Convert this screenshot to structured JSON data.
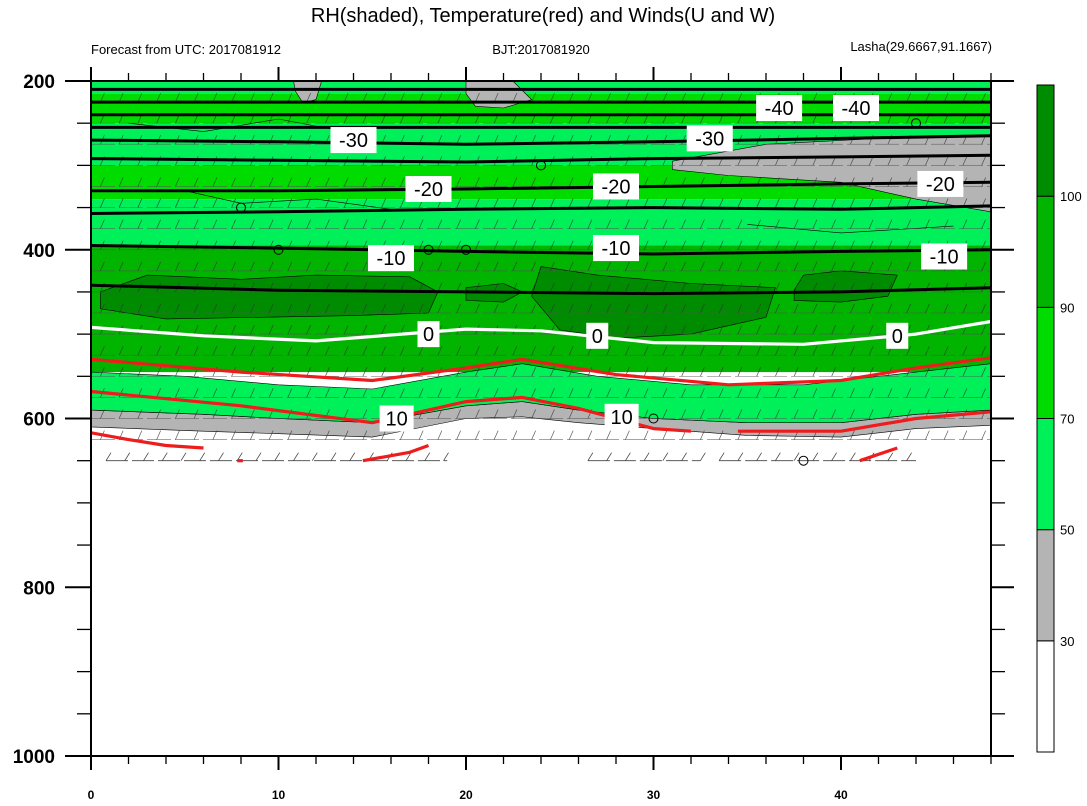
{
  "title": "RH(shaded), Temperature(red) and Winds(U and W)",
  "subtitle_left": "Forecast from UTC: 2017081912",
  "subtitle_center": "BJT:2017081920",
  "subtitle_right": "Lasha(29.6667,91.1667)",
  "colors": {
    "white": "#ffffff",
    "gray": "#b4b4b4",
    "light_green": "#00f05a",
    "green": "#00dc00",
    "mid_green": "#00b400",
    "dark_green": "#008c00",
    "temp_warm": "#ee1c1c",
    "temp_zero": "#ffffff",
    "temp_cold": "#000000"
  },
  "chart_data": {
    "type": "heatmap",
    "description_fields": "time-pressure cross section",
    "xlim": [
      0,
      48
    ],
    "ylim": [
      1000,
      200
    ],
    "x_ticks": [
      "0",
      "10",
      "20",
      "30",
      "40"
    ],
    "x_tick_values": [
      0,
      10,
      20,
      30,
      40
    ],
    "y_ticks": [
      "200",
      "400",
      "600",
      "800",
      "1000"
    ],
    "y_tick_values": [
      200,
      400,
      600,
      800,
      1000
    ],
    "colorbar": {
      "levels": [
        "30",
        "50",
        "70",
        "90",
        "100"
      ],
      "level_values": [
        30,
        50,
        70,
        90,
        100
      ],
      "bins": [
        {
          "range": [
            0,
            30
          ],
          "color": "#ffffff"
        },
        {
          "range": [
            30,
            50
          ],
          "color": "#b4b4b4"
        },
        {
          "range": [
            50,
            70
          ],
          "color": "#00f05a"
        },
        {
          "range": [
            70,
            90
          ],
          "color": "#00dc00"
        },
        {
          "range": [
            90,
            100
          ],
          "color": "#00b400"
        },
        {
          "range": [
            100,
            110
          ],
          "color": "#008c00"
        }
      ]
    },
    "rh_bands": [
      {
        "name": "surface_gray",
        "color": "#b4b4b4",
        "top": [
          [
            0,
            590
          ],
          [
            6,
            595
          ],
          [
            10,
            600
          ],
          [
            15,
            605
          ],
          [
            20,
            585
          ],
          [
            23,
            580
          ],
          [
            26,
            590
          ],
          [
            30,
            600
          ],
          [
            35,
            605
          ],
          [
            40,
            605
          ],
          [
            44,
            595
          ],
          [
            48,
            590
          ]
        ],
        "bottom": [
          [
            0,
            610
          ],
          [
            6,
            615
          ],
          [
            10,
            618
          ],
          [
            15,
            622
          ],
          [
            20,
            600
          ],
          [
            23,
            598
          ],
          [
            26,
            605
          ],
          [
            30,
            612
          ],
          [
            35,
            620
          ],
          [
            40,
            622
          ],
          [
            44,
            612
          ],
          [
            48,
            608
          ]
        ]
      },
      {
        "name": "lower_light",
        "color": "#00f05a",
        "top": [
          [
            0,
            545
          ],
          [
            5,
            550
          ],
          [
            10,
            560
          ],
          [
            15,
            565
          ],
          [
            20,
            545
          ],
          [
            23,
            535
          ],
          [
            27,
            550
          ],
          [
            32,
            560
          ],
          [
            38,
            560
          ],
          [
            44,
            545
          ],
          [
            48,
            535
          ]
        ],
        "bottom": [
          [
            0,
            590
          ],
          [
            6,
            595
          ],
          [
            10,
            600
          ],
          [
            15,
            605
          ],
          [
            20,
            585
          ],
          [
            23,
            580
          ],
          [
            26,
            590
          ],
          [
            30,
            600
          ],
          [
            35,
            605
          ],
          [
            40,
            605
          ],
          [
            44,
            595
          ],
          [
            48,
            590
          ]
        ]
      },
      {
        "name": "dark_blob_1",
        "color": "#008c00",
        "points": [
          [
            0.5,
            450
          ],
          [
            3,
            430
          ],
          [
            8,
            435
          ],
          [
            12,
            430
          ],
          [
            17,
            432
          ],
          [
            18.5,
            450
          ],
          [
            18,
            475
          ],
          [
            14,
            478
          ],
          [
            9,
            480
          ],
          [
            4,
            482
          ],
          [
            0.5,
            470
          ]
        ]
      },
      {
        "name": "dark_blob_2",
        "color": "#008c00",
        "points": [
          [
            20,
            445
          ],
          [
            22,
            440
          ],
          [
            23,
            450
          ],
          [
            22,
            462
          ],
          [
            20,
            460
          ]
        ]
      },
      {
        "name": "dark_blob_3",
        "color": "#008c00",
        "points": [
          [
            23.5,
            455
          ],
          [
            24,
            420
          ],
          [
            27,
            430
          ],
          [
            32,
            440
          ],
          [
            36.5,
            445
          ],
          [
            36,
            480
          ],
          [
            32,
            500
          ],
          [
            28,
            505
          ],
          [
            25,
            495
          ]
        ]
      },
      {
        "name": "dark_blob_4",
        "color": "#008c00",
        "points": [
          [
            37.5,
            448
          ],
          [
            38,
            430
          ],
          [
            40,
            425
          ],
          [
            43,
            430
          ],
          [
            42.5,
            455
          ],
          [
            40,
            462
          ],
          [
            37.5,
            460
          ]
        ]
      },
      {
        "name": "upper_gray_1",
        "color": "#b4b4b4",
        "points": [
          [
            31,
            295
          ],
          [
            36,
            275
          ],
          [
            42,
            268
          ],
          [
            48,
            265
          ],
          [
            48,
            355
          ],
          [
            44,
            340
          ],
          [
            40,
            320
          ],
          [
            34,
            312
          ],
          [
            31,
            305
          ]
        ]
      },
      {
        "name": "upper_gray_2",
        "color": "#b4b4b4",
        "points": [
          [
            20,
            200
          ],
          [
            22.5,
            200
          ],
          [
            23.5,
            222
          ],
          [
            22,
            232
          ],
          [
            20.5,
            230
          ],
          [
            20,
            215
          ]
        ]
      },
      {
        "name": "upper_gray_3",
        "color": "#b4b4b4",
        "points": [
          [
            10.8,
            200
          ],
          [
            12.3,
            200
          ],
          [
            12,
            222
          ],
          [
            11.3,
            226
          ],
          [
            10.9,
            212
          ]
        ]
      }
    ],
    "temperature_contours": [
      {
        "level": -40,
        "label": "-40",
        "color": "#000000",
        "lines": [
          [
            [
              0,
              210
            ],
            [
              48,
              210
            ]
          ],
          [
            [
              0,
              225
            ],
            [
              48,
              225
            ]
          ],
          [
            [
              0,
              240
            ],
            [
              48,
              240
            ]
          ],
          [
            [
              0,
              255
            ],
            [
              48,
              255
            ]
          ]
        ]
      },
      {
        "level": -30,
        "label": "-30",
        "color": "#000000",
        "lines": [
          [
            [
              0,
              270
            ],
            [
              10,
              272
            ],
            [
              20,
              275
            ],
            [
              30,
              272
            ],
            [
              40,
              268
            ],
            [
              48,
              265
            ]
          ],
          [
            [
              0,
              292
            ],
            [
              10,
              294
            ],
            [
              20,
              296
            ],
            [
              30,
              292
            ],
            [
              40,
              290
            ],
            [
              48,
              288
            ]
          ]
        ]
      },
      {
        "level": -20,
        "label": "-20",
        "color": "#000000",
        "lines": [
          [
            [
              0,
              330
            ],
            [
              10,
              330
            ],
            [
              20,
              328
            ],
            [
              30,
              325
            ],
            [
              40,
              322
            ],
            [
              48,
              320
            ]
          ],
          [
            [
              0,
              357
            ],
            [
              10,
              355
            ],
            [
              20,
              352
            ],
            [
              30,
              350
            ],
            [
              40,
              352
            ],
            [
              48,
              348
            ]
          ]
        ]
      },
      {
        "level": -10,
        "label": "-10",
        "color": "#000000",
        "lines": [
          [
            [
              0,
              395
            ],
            [
              10,
              398
            ],
            [
              20,
              402
            ],
            [
              30,
              405
            ],
            [
              40,
              402
            ],
            [
              48,
              400
            ]
          ],
          [
            [
              0,
              442
            ],
            [
              10,
              448
            ],
            [
              20,
              450
            ],
            [
              30,
              452
            ],
            [
              40,
              450
            ],
            [
              48,
              445
            ]
          ]
        ]
      },
      {
        "level": 0,
        "label": "0",
        "color": "#ffffff",
        "lines": [
          [
            [
              0,
              492
            ],
            [
              6,
              502
            ],
            [
              12,
              508
            ],
            [
              20,
              494
            ],
            [
              24,
              496
            ],
            [
              30,
              510
            ],
            [
              38,
              512
            ],
            [
              44,
              500
            ],
            [
              48,
              485
            ]
          ]
        ]
      },
      {
        "level": 10,
        "label": "10",
        "color": "#ee1c1c",
        "lines": [
          [
            [
              0,
              530
            ],
            [
              8,
              545
            ],
            [
              15,
              555
            ],
            [
              20,
              540
            ],
            [
              23,
              530
            ],
            [
              28,
              548
            ],
            [
              34,
              560
            ],
            [
              40,
              555
            ],
            [
              44,
              540
            ],
            [
              48,
              528
            ]
          ],
          [
            [
              0,
              568
            ],
            [
              8,
              585
            ],
            [
              15,
              605
            ],
            [
              20,
              580
            ],
            [
              23,
              575
            ],
            [
              26,
              588
            ],
            [
              30,
              612
            ],
            [
              32,
              615
            ]
          ],
          [
            [
              34.5,
              615
            ],
            [
              40,
              615
            ],
            [
              44,
              600
            ],
            [
              48,
              592
            ]
          ],
          [
            [
              0,
              617
            ],
            [
              2,
              625
            ],
            [
              4,
              632
            ],
            [
              6,
              635
            ]
          ],
          [
            [
              14.5,
              650
            ],
            [
              17,
              640
            ],
            [
              18,
              632
            ]
          ],
          [
            [
              41,
              650
            ],
            [
              43,
              635
            ]
          ]
        ]
      },
      {
        "level": 8,
        "label": "",
        "color": "#ee1c1c",
        "lines": [
          [
            [
              7.8,
              650
            ],
            [
              8.1,
              650
            ]
          ]
        ]
      }
    ],
    "contour_labels": [
      {
        "text": "-40",
        "x": 36.7,
        "y": 232
      },
      {
        "text": "-40",
        "x": 40.8,
        "y": 232
      },
      {
        "text": "-30",
        "x": 14,
        "y": 270
      },
      {
        "text": "-30",
        "x": 33,
        "y": 268
      },
      {
        "text": "-20",
        "x": 18,
        "y": 328
      },
      {
        "text": "-20",
        "x": 28,
        "y": 325
      },
      {
        "text": "-20",
        "x": 45.3,
        "y": 322
      },
      {
        "text": "-10",
        "x": 16,
        "y": 410
      },
      {
        "text": "-10",
        "x": 28,
        "y": 398
      },
      {
        "text": "-10",
        "x": 45.5,
        "y": 408
      },
      {
        "text": "0",
        "x": 18,
        "y": 500
      },
      {
        "text": "0",
        "x": 27,
        "y": 502
      },
      {
        "text": "0",
        "x": 43,
        "y": 502
      },
      {
        "text": "10",
        "x": 16.3,
        "y": 600
      },
      {
        "text": "10",
        "x": 28.3,
        "y": 598
      }
    ],
    "calm_markers": [
      {
        "x": 8,
        "y": 350
      },
      {
        "x": 10,
        "y": 400
      },
      {
        "x": 18,
        "y": 400
      },
      {
        "x": 20,
        "y": 400
      },
      {
        "x": 24,
        "y": 300
      },
      {
        "x": 30,
        "y": 600
      },
      {
        "x": 44,
        "y": 250
      },
      {
        "x": 38,
        "y": 650
      }
    ],
    "wind_rows": [
      225,
      250,
      275,
      300,
      325,
      350,
      375,
      400,
      425,
      450,
      475,
      500,
      525,
      550,
      575,
      600,
      625,
      650
    ],
    "wind_row_650_segments": [
      [
        0.8,
        19
      ],
      [
        26.5,
        32.5
      ],
      [
        33.5,
        44
      ]
    ]
  }
}
